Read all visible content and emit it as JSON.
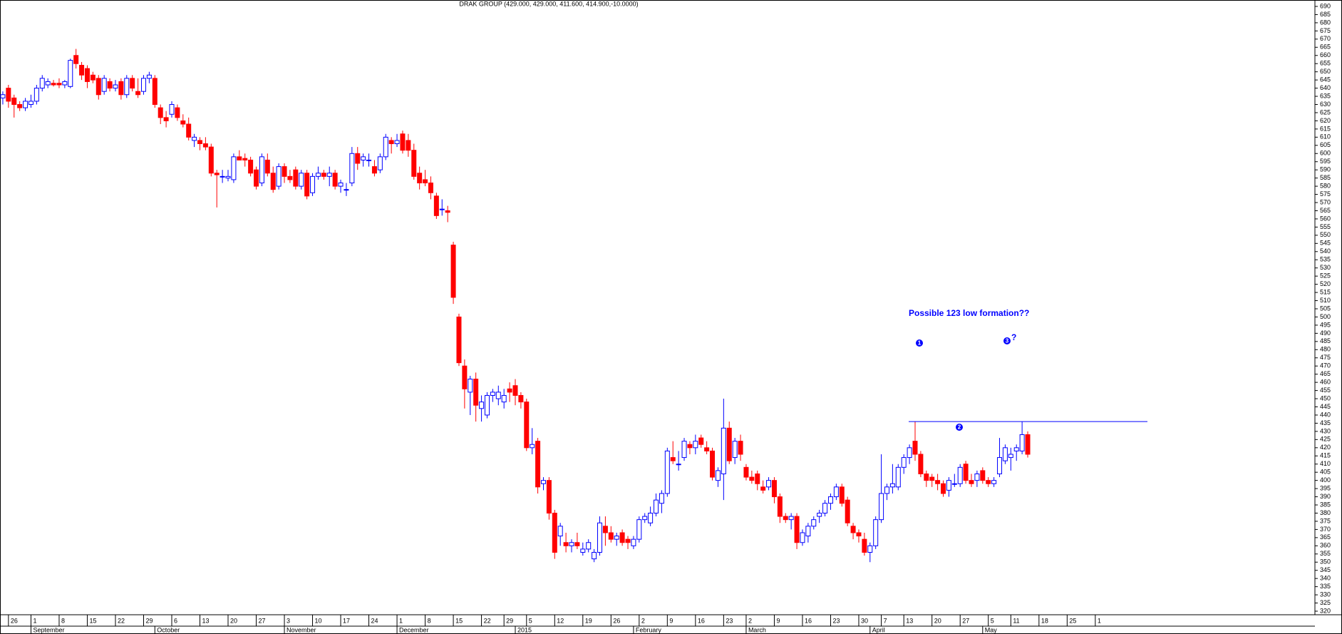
{
  "chart_data": {
    "type": "candlestick",
    "title": "DRAK GROUP (429.000, 429.000, 411.600, 414.900,-10.0000)",
    "up_color": "#0000ff",
    "down_color": "#ff0000",
    "xlim": [
      -0.5,
      233
    ],
    "ylim": [
      320,
      690
    ],
    "open": [
      634,
      640,
      634,
      630,
      628,
      630,
      632,
      640,
      642,
      643,
      643,
      642,
      641,
      660,
      654,
      652,
      648,
      646,
      638,
      644,
      640,
      644,
      636,
      646,
      638,
      638,
      646,
      646,
      628,
      622,
      624,
      628,
      620,
      618,
      608,
      608,
      606,
      604,
      588,
      586,
      585,
      584,
      598,
      597,
      596,
      590,
      582,
      596,
      588,
      580,
      592,
      586,
      590,
      580,
      588,
      576,
      586,
      588,
      586,
      588,
      580,
      578,
      582,
      600,
      596,
      596,
      592,
      590,
      598,
      608,
      606,
      612,
      608,
      602,
      588,
      584,
      582,
      574,
      566,
      565,
      544,
      500,
      470,
      454,
      462,
      444,
      440,
      452,
      450,
      448,
      456,
      458,
      452,
      448,
      420,
      424,
      398,
      400,
      380,
      366,
      362,
      360,
      362,
      356,
      358,
      352,
      356,
      372,
      368,
      364,
      368,
      364,
      360,
      364,
      376,
      374,
      380,
      386,
      392,
      414,
      410,
      414,
      422,
      420,
      426,
      420,
      418,
      400,
      404,
      432,
      414,
      424,
      408,
      402,
      404,
      396,
      396,
      400,
      390,
      378,
      376,
      378,
      362,
      366,
      372,
      378,
      380,
      386,
      390,
      396,
      388,
      372,
      368,
      364,
      356,
      360,
      376,
      392,
      396,
      396,
      408,
      414,
      424,
      416,
      404,
      402,
      400,
      398,
      394,
      398,
      398,
      410,
      400,
      400,
      406,
      400,
      398,
      404,
      412,
      414,
      418,
      418,
      428
    ],
    "high": [
      638,
      642,
      636,
      632,
      634,
      636,
      642,
      648,
      646,
      645,
      646,
      645,
      658,
      664,
      656,
      654,
      650,
      648,
      648,
      646,
      645,
      646,
      648,
      648,
      646,
      648,
      650,
      648,
      630,
      626,
      632,
      630,
      624,
      622,
      612,
      610,
      610,
      606,
      590,
      590,
      590,
      600,
      602,
      600,
      598,
      592,
      600,
      600,
      592,
      594,
      594,
      590,
      592,
      590,
      590,
      588,
      592,
      590,
      592,
      590,
      584,
      582,
      604,
      604,
      600,
      600,
      596,
      600,
      612,
      610,
      612,
      614,
      612,
      606,
      592,
      590,
      586,
      576,
      572,
      568,
      546,
      502,
      474,
      464,
      466,
      452,
      454,
      456,
      458,
      456,
      460,
      462,
      454,
      450,
      432,
      426,
      402,
      402,
      382,
      374,
      368,
      364,
      368,
      362,
      364,
      358,
      378,
      378,
      372,
      368,
      370,
      366,
      366,
      378,
      380,
      384,
      392,
      394,
      420,
      424,
      418,
      426,
      424,
      428,
      428,
      424,
      420,
      408,
      450,
      436,
      426,
      428,
      410,
      406,
      406,
      400,
      402,
      402,
      392,
      380,
      380,
      380,
      370,
      374,
      378,
      382,
      388,
      392,
      398,
      398,
      390,
      374,
      370,
      368,
      362,
      378,
      416,
      398,
      410,
      410,
      416,
      422,
      436,
      418,
      406,
      404,
      404,
      400,
      402,
      404,
      410,
      412,
      404,
      406,
      408,
      402,
      402,
      426,
      422,
      420,
      422,
      436,
      430
    ],
    "low": [
      630,
      628,
      622,
      626,
      626,
      628,
      630,
      638,
      640,
      641,
      640,
      640,
      640,
      652,
      645,
      640,
      643,
      633,
      636,
      638,
      638,
      633,
      634,
      638,
      634,
      636,
      643,
      628,
      618,
      616,
      622,
      620,
      616,
      608,
      604,
      602,
      602,
      586,
      567,
      582,
      583,
      582,
      596,
      592,
      586,
      578,
      580,
      586,
      576,
      578,
      582,
      582,
      578,
      578,
      572,
      574,
      584,
      584,
      580,
      578,
      576,
      574,
      580,
      590,
      592,
      592,
      586,
      588,
      596,
      600,
      604,
      600,
      598,
      584,
      578,
      580,
      572,
      560,
      562,
      558,
      508,
      470,
      444,
      440,
      436,
      436,
      438,
      448,
      446,
      444,
      448,
      446,
      444,
      418,
      416,
      392,
      394,
      376,
      352,
      360,
      356,
      356,
      358,
      354,
      356,
      350,
      354,
      360,
      362,
      360,
      360,
      358,
      358,
      362,
      374,
      372,
      378,
      380,
      390,
      410,
      406,
      412,
      416,
      416,
      420,
      416,
      400,
      396,
      388,
      410,
      410,
      412,
      400,
      398,
      394,
      392,
      394,
      386,
      374,
      374,
      370,
      358,
      360,
      362,
      370,
      374,
      378,
      382,
      388,
      384,
      372,
      364,
      362,
      354,
      350,
      358,
      374,
      388,
      392,
      394,
      404,
      410,
      412,
      402,
      396,
      396,
      394,
      390,
      390,
      396,
      396,
      398,
      396,
      396,
      398,
      396,
      396,
      402,
      410,
      406,
      412,
      416,
      414
    ],
    "close": [
      636,
      632,
      630,
      628,
      632,
      632,
      640,
      646,
      644,
      642,
      642,
      644,
      657,
      655,
      648,
      644,
      645,
      636,
      646,
      640,
      642,
      636,
      646,
      640,
      636,
      646,
      648,
      630,
      622,
      620,
      630,
      622,
      618,
      610,
      610,
      606,
      604,
      588,
      587,
      586,
      586,
      598,
      596,
      596,
      588,
      580,
      598,
      588,
      578,
      592,
      586,
      584,
      580,
      588,
      574,
      586,
      588,
      586,
      588,
      580,
      582,
      578,
      600,
      594,
      598,
      596,
      588,
      598,
      610,
      606,
      608,
      602,
      602,
      586,
      582,
      582,
      576,
      562,
      566,
      564,
      512,
      472,
      456,
      462,
      446,
      448,
      452,
      454,
      454,
      452,
      454,
      452,
      448,
      420,
      422,
      396,
      400,
      380,
      356,
      372,
      360,
      362,
      360,
      358,
      362,
      356,
      374,
      368,
      364,
      366,
      362,
      362,
      364,
      376,
      378,
      380,
      388,
      392,
      418,
      412,
      410,
      424,
      420,
      424,
      422,
      418,
      402,
      406,
      432,
      412,
      424,
      416,
      402,
      400,
      398,
      394,
      400,
      390,
      378,
      376,
      378,
      362,
      368,
      372,
      376,
      380,
      386,
      390,
      396,
      386,
      374,
      368,
      366,
      356,
      360,
      376,
      392,
      396,
      398,
      408,
      414,
      420,
      416,
      404,
      400,
      400,
      398,
      392,
      400,
      398,
      408,
      400,
      398,
      404,
      400,
      398,
      400,
      414,
      420,
      416,
      420,
      428,
      416
    ],
    "yticks": [
      320,
      325,
      330,
      335,
      340,
      345,
      350,
      355,
      360,
      365,
      370,
      375,
      380,
      385,
      390,
      395,
      400,
      405,
      410,
      415,
      420,
      425,
      430,
      435,
      440,
      445,
      450,
      455,
      460,
      465,
      470,
      475,
      480,
      485,
      490,
      495,
      500,
      505,
      510,
      515,
      520,
      525,
      530,
      535,
      540,
      545,
      550,
      555,
      560,
      565,
      570,
      575,
      580,
      585,
      590,
      595,
      600,
      605,
      610,
      615,
      620,
      625,
      630,
      635,
      640,
      645,
      650,
      655,
      660,
      665,
      670,
      675,
      680,
      685,
      690
    ],
    "xticks": [
      {
        "value": 1,
        "label": "26"
      },
      {
        "value": 5,
        "label": "1"
      },
      {
        "value": 10,
        "label": "8"
      },
      {
        "value": 15,
        "label": "15"
      },
      {
        "value": 20,
        "label": "22"
      },
      {
        "value": 25,
        "label": "29"
      },
      {
        "value": 30,
        "label": "6"
      },
      {
        "value": 35,
        "label": "13"
      },
      {
        "value": 40,
        "label": "20"
      },
      {
        "value": 45,
        "label": "27"
      },
      {
        "value": 50,
        "label": "3"
      },
      {
        "value": 55,
        "label": "10"
      },
      {
        "value": 60,
        "label": "17"
      },
      {
        "value": 65,
        "label": "24"
      },
      {
        "value": 70,
        "label": "1"
      },
      {
        "value": 75,
        "label": "8"
      },
      {
        "value": 80,
        "label": "15"
      },
      {
        "value": 85,
        "label": "22"
      },
      {
        "value": 89,
        "label": "29"
      },
      {
        "value": 93,
        "label": "5"
      },
      {
        "value": 98,
        "label": "12"
      },
      {
        "value": 103,
        "label": "19"
      },
      {
        "value": 108,
        "label": "26"
      },
      {
        "value": 113,
        "label": "2"
      },
      {
        "value": 118,
        "label": "9"
      },
      {
        "value": 123,
        "label": "16"
      },
      {
        "value": 128,
        "label": "23"
      },
      {
        "value": 132,
        "label": "2"
      },
      {
        "value": 137,
        "label": "9"
      },
      {
        "value": 142,
        "label": "16"
      },
      {
        "value": 147,
        "label": "23"
      },
      {
        "value": 152,
        "label": "30"
      },
      {
        "value": 156,
        "label": "7"
      },
      {
        "value": 160,
        "label": "13"
      },
      {
        "value": 165,
        "label": "20"
      },
      {
        "value": 170,
        "label": "27"
      },
      {
        "value": 175,
        "label": "5"
      },
      {
        "value": 179,
        "label": "11"
      },
      {
        "value": 184,
        "label": "18"
      },
      {
        "value": 189,
        "label": "25"
      },
      {
        "value": 194,
        "label": "1"
      }
    ],
    "month_ticks": [
      {
        "value": 5,
        "label": "September"
      },
      {
        "value": 27,
        "label": "October"
      },
      {
        "value": 50,
        "label": "November"
      },
      {
        "value": 70,
        "label": "December"
      },
      {
        "value": 91,
        "label": "2015"
      },
      {
        "value": 112,
        "label": "February"
      },
      {
        "value": 132,
        "label": "March"
      },
      {
        "value": 154,
        "label": "April"
      },
      {
        "value": 174,
        "label": "May"
      }
    ],
    "level_line": {
      "value": 436
    },
    "annotations": [
      "Possible 123 low formation??",
      "1",
      "2",
      "3",
      "?"
    ]
  }
}
